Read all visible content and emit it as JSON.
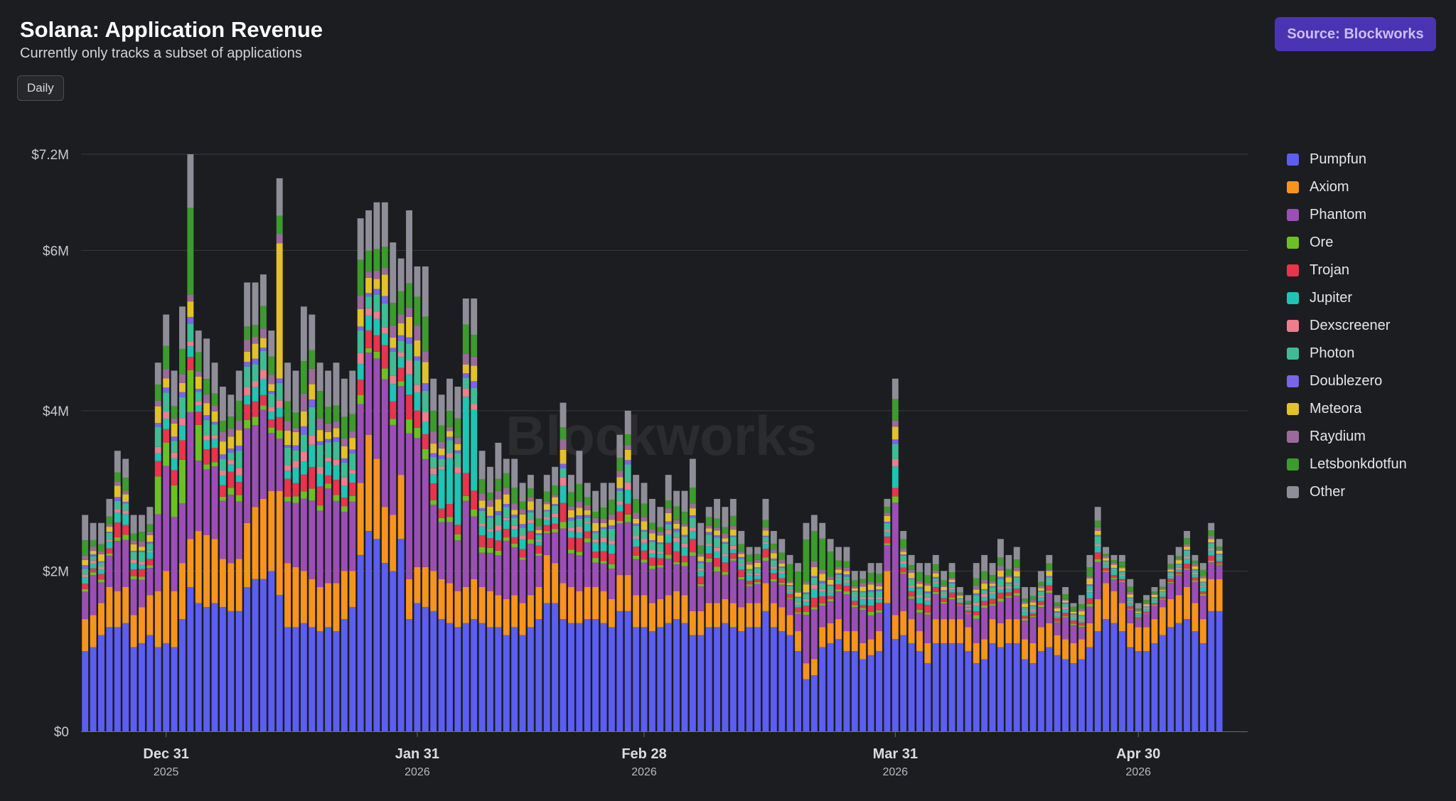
{
  "header": {
    "title": "Solana: Application Revenue",
    "subtitle": "Currently only tracks a subset of applications",
    "interval_button": "Daily",
    "source_badge": "Source: Blockworks"
  },
  "watermark": "Blockworks",
  "colors": {
    "background": "#1c1d20",
    "grid": "#3a3b40",
    "badge": "#4b34b2"
  },
  "chart_data": {
    "type": "bar",
    "stacked": true,
    "title": "Solana: Application Revenue",
    "subtitle": "Currently only tracks a subset of applications",
    "x_start_date": "2025-12-21",
    "x_end_date": "2026-05-13",
    "ylim": [
      0,
      7200000
    ],
    "y_ticks": [
      {
        "value": 0,
        "label": "$0"
      },
      {
        "value": 2000000,
        "label": "$2M"
      },
      {
        "value": 4000000,
        "label": "$4M"
      },
      {
        "value": 6000000,
        "label": "$6M"
      },
      {
        "value": 7200000,
        "label": "$7.2M"
      }
    ],
    "x_ticks": [
      {
        "date": "2025-12-31",
        "label": "Dec 31",
        "year": "2025"
      },
      {
        "date": "2026-01-31",
        "label": "Jan 31",
        "year": "2026"
      },
      {
        "date": "2026-02-28",
        "label": "Feb 28",
        "year": "2026"
      },
      {
        "date": "2026-03-31",
        "label": "Mar 31",
        "year": "2026"
      },
      {
        "date": "2026-04-30",
        "label": "Apr 30",
        "year": "2026"
      }
    ],
    "grid": true,
    "legend_position": "right",
    "series": [
      {
        "name": "Pumpfun",
        "color": "#5b5ef0"
      },
      {
        "name": "Axiom",
        "color": "#f7941d"
      },
      {
        "name": "Phantom",
        "color": "#9b4fb5"
      },
      {
        "name": "Ore",
        "color": "#6cc024"
      },
      {
        "name": "Trojan",
        "color": "#e8344d"
      },
      {
        "name": "Jupiter",
        "color": "#1ec4b4"
      },
      {
        "name": "Dexscreener",
        "color": "#f07c8c"
      },
      {
        "name": "Photon",
        "color": "#3fbc94"
      },
      {
        "name": "Doublezero",
        "color": "#7a64e8"
      },
      {
        "name": "Meteora",
        "color": "#e3c12a"
      },
      {
        "name": "Raydium",
        "color": "#9a6b9a"
      },
      {
        "name": "Letsbonkdotfun",
        "color": "#3d9a2e"
      },
      {
        "name": "Other",
        "color": "#8f8d98"
      }
    ],
    "daily_totals": [
      2.7,
      2.6,
      2.6,
      2.9,
      3.5,
      3.4,
      2.7,
      2.7,
      2.8,
      4.6,
      5.2,
      4.5,
      5.3,
      7.2,
      5.0,
      4.9,
      4.6,
      4.3,
      4.2,
      4.5,
      5.6,
      5.6,
      5.7,
      5.0,
      6.9,
      4.6,
      4.5,
      5.3,
      5.2,
      4.6,
      4.5,
      4.6,
      4.4,
      4.5,
      6.4,
      6.5,
      6.6,
      6.6,
      6.1,
      5.9,
      6.5,
      5.8,
      5.8,
      4.4,
      4.2,
      4.4,
      4.3,
      5.4,
      5.4,
      3.5,
      3.3,
      3.6,
      3.4,
      3.4,
      3.1,
      3.2,
      2.9,
      3.2,
      3.3,
      4.1,
      3.2,
      3.5,
      3.1,
      3.0,
      3.1,
      3.1,
      3.7,
      4.0,
      3.2,
      3.1,
      2.9,
      2.8,
      3.2,
      3.0,
      3.0,
      3.4,
      2.6,
      2.8,
      2.9,
      2.8,
      2.9,
      2.5,
      2.3,
      2.3,
      2.9,
      2.5,
      2.4,
      2.2,
      2.1,
      2.6,
      2.7,
      2.6,
      2.4,
      2.3,
      2.3,
      2.0,
      2.0,
      2.1,
      2.1,
      2.9,
      4.4,
      2.5,
      2.2,
      2.1,
      2.1,
      2.2,
      2.0,
      2.1,
      1.8,
      1.7,
      2.1,
      2.2,
      2.1,
      2.4,
      2.2,
      2.3,
      1.8,
      1.8,
      2.0,
      2.2,
      1.7,
      1.8,
      1.6,
      1.7,
      2.2,
      2.8,
      2.3,
      2.2,
      2.2,
      1.9,
      1.6,
      1.7,
      1.8,
      1.9,
      2.2,
      2.3,
      2.5,
      2.2,
      2.1,
      2.6,
      2.4
    ],
    "pumpfun_values": [
      1.0,
      1.05,
      1.2,
      1.3,
      1.3,
      1.35,
      1.05,
      1.1,
      1.2,
      1.05,
      1.1,
      1.05,
      1.4,
      1.8,
      1.6,
      1.55,
      1.6,
      1.55,
      1.5,
      1.5,
      1.8,
      1.9,
      1.9,
      2.0,
      1.7,
      1.3,
      1.3,
      1.35,
      1.3,
      1.25,
      1.3,
      1.25,
      1.4,
      1.55,
      2.2,
      2.5,
      2.4,
      2.1,
      2.0,
      2.4,
      1.4,
      1.6,
      1.55,
      1.5,
      1.4,
      1.35,
      1.3,
      1.35,
      1.4,
      1.35,
      1.3,
      1.3,
      1.2,
      1.3,
      1.2,
      1.3,
      1.4,
      1.6,
      1.6,
      1.4,
      1.35,
      1.35,
      1.4,
      1.4,
      1.35,
      1.3,
      1.5,
      1.5,
      1.3,
      1.3,
      1.25,
      1.3,
      1.35,
      1.4,
      1.35,
      1.2,
      1.2,
      1.3,
      1.3,
      1.35,
      1.3,
      1.25,
      1.3,
      1.3,
      1.5,
      1.3,
      1.25,
      1.2,
      1.0,
      0.65,
      0.7,
      1.05,
      1.1,
      1.15,
      1.0,
      1.0,
      0.9,
      0.95,
      1.0,
      1.6,
      1.15,
      1.2,
      1.1,
      1.0,
      0.85,
      1.1,
      1.1,
      1.1,
      1.1,
      1.0,
      0.85,
      0.9,
      1.1,
      1.05,
      1.1,
      1.1,
      0.9,
      0.85,
      1.0,
      1.05,
      0.95,
      0.9,
      0.85,
      0.9,
      1.05,
      1.25,
      1.4,
      1.35,
      1.25,
      1.05,
      1.0,
      1.0,
      1.1,
      1.2,
      1.3,
      1.35,
      1.4,
      1.25,
      1.1,
      1.5,
      1.5
    ],
    "axiom_values": [
      0.4,
      0.4,
      0.4,
      0.5,
      0.45,
      0.45,
      0.4,
      0.45,
      0.5,
      0.7,
      0.9,
      0.7,
      0.7,
      0.6,
      0.9,
      0.9,
      0.8,
      0.6,
      0.6,
      0.65,
      0.8,
      0.9,
      1.0,
      1.0,
      1.3,
      0.8,
      0.75,
      0.65,
      0.6,
      0.55,
      0.55,
      0.6,
      0.6,
      0.45,
      0.9,
      1.2,
      1.0,
      0.7,
      0.7,
      0.8,
      0.5,
      0.45,
      0.5,
      0.5,
      0.5,
      0.5,
      0.45,
      0.45,
      0.5,
      0.45,
      0.45,
      0.4,
      0.45,
      0.4,
      0.4,
      0.4,
      0.4,
      0.6,
      0.5,
      0.45,
      0.45,
      0.4,
      0.4,
      0.4,
      0.4,
      0.35,
      0.45,
      0.45,
      0.4,
      0.4,
      0.35,
      0.35,
      0.35,
      0.35,
      0.35,
      0.3,
      0.3,
      0.3,
      0.3,
      0.3,
      0.3,
      0.3,
      0.3,
      0.3,
      0.35,
      0.3,
      0.3,
      0.25,
      0.25,
      0.2,
      0.2,
      0.25,
      0.25,
      0.25,
      0.25,
      0.25,
      0.2,
      0.2,
      0.25,
      0.4,
      0.3,
      0.3,
      0.3,
      0.25,
      0.25,
      0.3,
      0.3,
      0.3,
      0.3,
      0.3,
      0.25,
      0.25,
      0.3,
      0.3,
      0.3,
      0.3,
      0.25,
      0.25,
      0.3,
      0.3,
      0.25,
      0.25,
      0.25,
      0.25,
      0.3,
      0.4,
      0.45,
      0.4,
      0.35,
      0.3,
      0.3,
      0.3,
      0.3,
      0.35,
      0.35,
      0.35,
      0.4,
      0.35,
      0.3,
      0.4,
      0.4
    ]
  },
  "legend": {
    "items": [
      {
        "label": "Pumpfun",
        "color": "#5b5ef0"
      },
      {
        "label": "Axiom",
        "color": "#f7941d"
      },
      {
        "label": "Phantom",
        "color": "#9b4fb5"
      },
      {
        "label": "Ore",
        "color": "#6cc024"
      },
      {
        "label": "Trojan",
        "color": "#e8344d"
      },
      {
        "label": "Jupiter",
        "color": "#1ec4b4"
      },
      {
        "label": "Dexscreener",
        "color": "#f07c8c"
      },
      {
        "label": "Photon",
        "color": "#3fbc94"
      },
      {
        "label": "Doublezero",
        "color": "#7a64e8"
      },
      {
        "label": "Meteora",
        "color": "#e3c12a"
      },
      {
        "label": "Raydium",
        "color": "#9a6b9a"
      },
      {
        "label": "Letsbonkdotfun",
        "color": "#3d9a2e"
      },
      {
        "label": "Other",
        "color": "#8f8d98"
      }
    ]
  }
}
